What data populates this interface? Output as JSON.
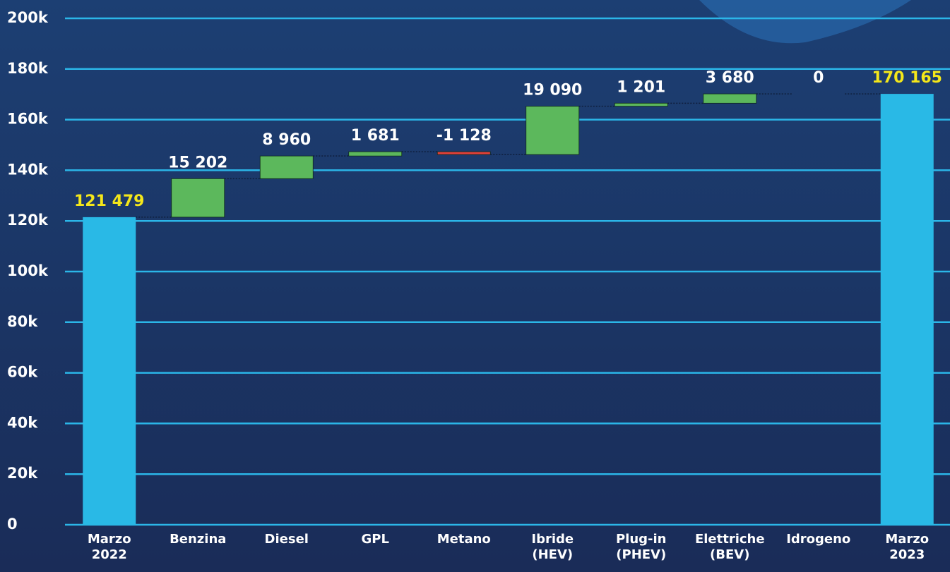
{
  "chart_data": {
    "type": "waterfall",
    "categories": [
      [
        "Marzo",
        "2022"
      ],
      [
        "Benzina"
      ],
      [
        "Diesel"
      ],
      [
        "GPL"
      ],
      [
        "Metano"
      ],
      [
        "Ibride",
        "(HEV)"
      ],
      [
        "Plug-in",
        "(PHEV)"
      ],
      [
        "Elettriche",
        "(BEV)"
      ],
      [
        "Idrogeno"
      ],
      [
        "Marzo",
        "2023"
      ]
    ],
    "values": [
      121479,
      15202,
      8960,
      1681,
      -1128,
      19090,
      1201,
      3680,
      0,
      170165
    ],
    "value_labels": [
      "121 479",
      "15 202",
      "8 960",
      "1 681",
      "-1 128",
      "19 090",
      "1 201",
      "3 680",
      "0",
      "170 165"
    ],
    "measure": [
      "absolute",
      "relative",
      "relative",
      "relative",
      "relative",
      "relative",
      "relative",
      "relative",
      "relative",
      "absolute"
    ],
    "colors": {
      "total": "#29b9e6",
      "increase": "#5cb85c",
      "decrease": "#e0403a"
    },
    "ylim": [
      0,
      200000
    ],
    "yticks": [
      0,
      {
        "value": 20000,
        "label": "20k"
      },
      {
        "value": 40000,
        "label": "40k"
      },
      {
        "value": 60000,
        "label": "60k"
      },
      {
        "value": 80000,
        "label": "80k"
      },
      {
        "value": 100000,
        "label": "100k"
      },
      {
        "value": 120000,
        "label": "120k"
      },
      {
        "value": 140000,
        "label": "140k"
      },
      {
        "value": 160000,
        "label": "160k"
      },
      {
        "value": 180000,
        "label": "180k"
      },
      {
        "value": 200000,
        "label": "200k"
      }
    ],
    "grid": true
  }
}
